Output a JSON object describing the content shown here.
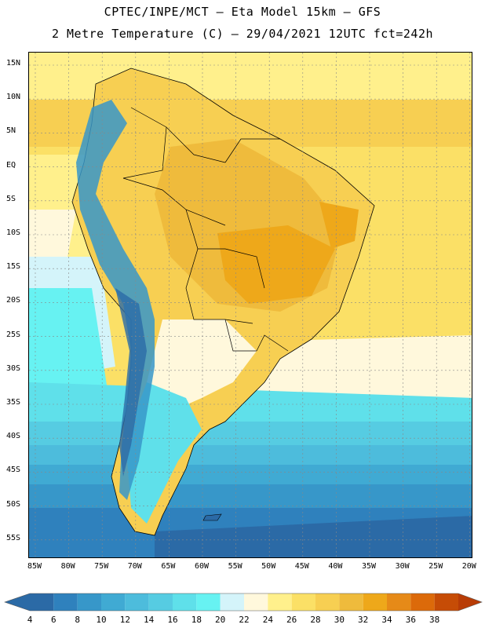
{
  "header": {
    "line1": "CPTEC/INPE/MCT –  Eta Model 15km – GFS",
    "line2": "2 Metre Temperature (C) – 29/04/2021 12UTC fct=242h"
  },
  "map": {
    "lat_labels": [
      "15N",
      "10N",
      "5N",
      "EQ",
      "5S",
      "10S",
      "15S",
      "20S",
      "25S",
      "30S",
      "35S",
      "40S",
      "45S",
      "50S",
      "55S"
    ],
    "lon_labels": [
      "85W",
      "80W",
      "75W",
      "70W",
      "65W",
      "60W",
      "55W",
      "50W",
      "45W",
      "40W",
      "35W",
      "30W",
      "25W",
      "20W"
    ]
  },
  "colorbar": {
    "labels": [
      "4",
      "6",
      "8",
      "10",
      "12",
      "14",
      "16",
      "18",
      "20",
      "22",
      "24",
      "26",
      "28",
      "30",
      "32",
      "34",
      "36",
      "38"
    ],
    "colors": [
      "#2b6aa6",
      "#2f81bd",
      "#3797c9",
      "#40aad3",
      "#4dbcdc",
      "#56cce2",
      "#5fe0ea",
      "#67f2f2",
      "#d4f4fa",
      "#fff8dc",
      "#fff08c",
      "#fbe066",
      "#f7cf52",
      "#efbb3c",
      "#eea81a",
      "#e68a18",
      "#dc6a0a",
      "#c64c06",
      "#b83c06"
    ]
  }
}
